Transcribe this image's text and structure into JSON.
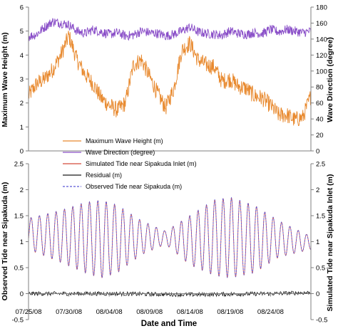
{
  "colors": {
    "wave_height": "#E8892E",
    "wave_direction": "#8A4FC8",
    "simulated_tide": "#D44A3A",
    "residual": "#1a1a1a",
    "observed_tide": "#5A57D8",
    "axis": "#7f7f7f"
  },
  "chart_data": [
    {
      "type": "line",
      "panel": "top",
      "x_axis": {
        "type": "date",
        "min": "07/25/08",
        "max": "08/29/08"
      },
      "y_left": {
        "label": "Maximum Wave Height (m)",
        "ylim": [
          0,
          6
        ],
        "ticks": [
          "0",
          "1",
          "2",
          "3",
          "4",
          "5",
          "6"
        ]
      },
      "y_right": {
        "label": "Wave Direction (degree)",
        "ylim": [
          0,
          180
        ],
        "ticks": [
          "0",
          "20",
          "40",
          "60",
          "80",
          "100",
          "120",
          "140",
          "160",
          "180"
        ]
      },
      "grid": false,
      "series": [
        {
          "name": "Maximum Wave Height (m)",
          "axis": "left",
          "x": [
            "07/25/08",
            "07/26/08",
            "07/27/08",
            "07/28/08",
            "07/29/08",
            "07/30/08",
            "07/31/08",
            "08/01/08",
            "08/02/08",
            "08/03/08",
            "08/04/08",
            "08/05/08",
            "08/06/08",
            "08/07/08",
            "08/08/08",
            "08/09/08",
            "08/10/08",
            "08/11/08",
            "08/12/08",
            "08/13/08",
            "08/14/08",
            "08/15/08",
            "08/16/08",
            "08/17/08",
            "08/18/08",
            "08/19/08",
            "08/20/08",
            "08/21/08",
            "08/22/08",
            "08/23/08",
            "08/24/08",
            "08/25/08",
            "08/26/08",
            "08/27/08",
            "08/28/08",
            "08/29/08"
          ],
          "values": [
            2.3,
            2.8,
            3.0,
            3.4,
            4.0,
            4.8,
            3.8,
            3.2,
            2.8,
            2.2,
            1.9,
            1.7,
            2.0,
            3.6,
            3.8,
            3.1,
            2.4,
            1.8,
            2.6,
            4.2,
            4.5,
            3.8,
            3.6,
            3.5,
            2.9,
            3.0,
            2.7,
            2.6,
            2.3,
            2.2,
            1.9,
            1.5,
            1.5,
            1.3,
            1.4,
            2.3
          ]
        },
        {
          "name": "Wave Direction (degree)",
          "axis": "right",
          "x": [
            "07/25/08",
            "07/26/08",
            "07/27/08",
            "07/28/08",
            "07/29/08",
            "07/30/08",
            "07/31/08",
            "08/01/08",
            "08/02/08",
            "08/03/08",
            "08/04/08",
            "08/05/08",
            "08/06/08",
            "08/07/08",
            "08/08/08",
            "08/09/08",
            "08/10/08",
            "08/11/08",
            "08/12/08",
            "08/13/08",
            "08/14/08",
            "08/15/08",
            "08/16/08",
            "08/17/08",
            "08/18/08",
            "08/19/08",
            "08/20/08",
            "08/21/08",
            "08/22/08",
            "08/23/08",
            "08/24/08",
            "08/25/08",
            "08/26/08",
            "08/27/08",
            "08/28/08",
            "08/29/08"
          ],
          "values": [
            143,
            146,
            155,
            162,
            160,
            158,
            150,
            147,
            152,
            149,
            146,
            148,
            144,
            145,
            150,
            148,
            147,
            144,
            146,
            150,
            155,
            149,
            147,
            146,
            145,
            150,
            147,
            146,
            148,
            147,
            152,
            149,
            152,
            150,
            148,
            150
          ]
        }
      ]
    },
    {
      "type": "line",
      "panel": "bottom",
      "x_axis": {
        "type": "date",
        "label": "Date and Time",
        "min": "07/25/08",
        "max": "08/29/08",
        "tick_labels": [
          "07/25/08",
          "07/30/08",
          "08/04/08",
          "08/09/08",
          "08/14/08",
          "08/19/08",
          "08/24/08"
        ]
      },
      "y_left": {
        "label": "Observed Tide near Sipakuda (m)",
        "ylim": [
          -0.5,
          2.5
        ],
        "ticks": [
          "-0.5",
          "0",
          "0.5",
          "1",
          "1.5",
          "2",
          "2.5"
        ]
      },
      "y_right": {
        "label": "Simulated Tide near Sipakuda Inlet (m)",
        "ylim": [
          -0.5,
          2.5
        ],
        "ticks": [
          "-0.5",
          "0",
          "0.5",
          "1",
          "1.5",
          "2",
          "2.5"
        ]
      },
      "grid": false,
      "series": [
        {
          "name": "Simulated Tide near Sipakuda Inlet (m)",
          "tidal_envelope": {
            "x": [
              "07/25/08",
              "07/29/08",
              "08/01/08",
              "08/03/08",
              "08/05/08",
              "08/08/08",
              "08/11/08",
              "08/14/08",
              "08/17/08",
              "08/19/08",
              "08/22/08",
              "08/25/08",
              "08/29/08"
            ],
            "high": [
              1.45,
              1.6,
              1.75,
              1.8,
              1.7,
              1.4,
              1.2,
              1.5,
              1.8,
              1.85,
              1.7,
              1.4,
              1.1
            ],
            "low": [
              0.85,
              0.6,
              0.4,
              0.3,
              0.4,
              0.75,
              0.95,
              0.55,
              0.35,
              0.3,
              0.4,
              0.7,
              0.85
            ]
          }
        },
        {
          "name": "Residual (m)",
          "x": [
            "07/25/08",
            "08/04/08",
            "08/14/08",
            "08/24/08",
            "08/29/08"
          ],
          "values": [
            0.0,
            0.0,
            -0.02,
            0.0,
            0.02
          ]
        },
        {
          "name": "Observed Tide near Sipakuda (m)",
          "tidal_envelope": {
            "x": [
              "07/25/08",
              "07/29/08",
              "08/01/08",
              "08/03/08",
              "08/05/08",
              "08/08/08",
              "08/11/08",
              "08/14/08",
              "08/17/08",
              "08/19/08",
              "08/22/08",
              "08/25/08",
              "08/29/08"
            ],
            "high": [
              1.45,
              1.6,
              1.75,
              1.8,
              1.7,
              1.4,
              1.2,
              1.5,
              1.8,
              1.85,
              1.7,
              1.4,
              1.1
            ],
            "low": [
              0.85,
              0.6,
              0.4,
              0.3,
              0.4,
              0.75,
              0.95,
              0.55,
              0.35,
              0.3,
              0.4,
              0.7,
              0.85
            ]
          }
        }
      ]
    }
  ],
  "legend": {
    "items": [
      {
        "label": "Maximum Wave Height (m)",
        "style": "solid",
        "color_key": "wave_height"
      },
      {
        "label": "Wave Direction (degree)",
        "style": "solid",
        "color_key": "wave_direction"
      },
      {
        "label": "Simulated Tide near Sipakuda Inlet (m)",
        "style": "solid",
        "color_key": "simulated_tide"
      },
      {
        "label": "Residual (m)",
        "style": "solid",
        "color_key": "residual"
      },
      {
        "label": "Observed Tide near Sipakuda (m)",
        "style": "dashed",
        "color_key": "observed_tide"
      }
    ]
  }
}
